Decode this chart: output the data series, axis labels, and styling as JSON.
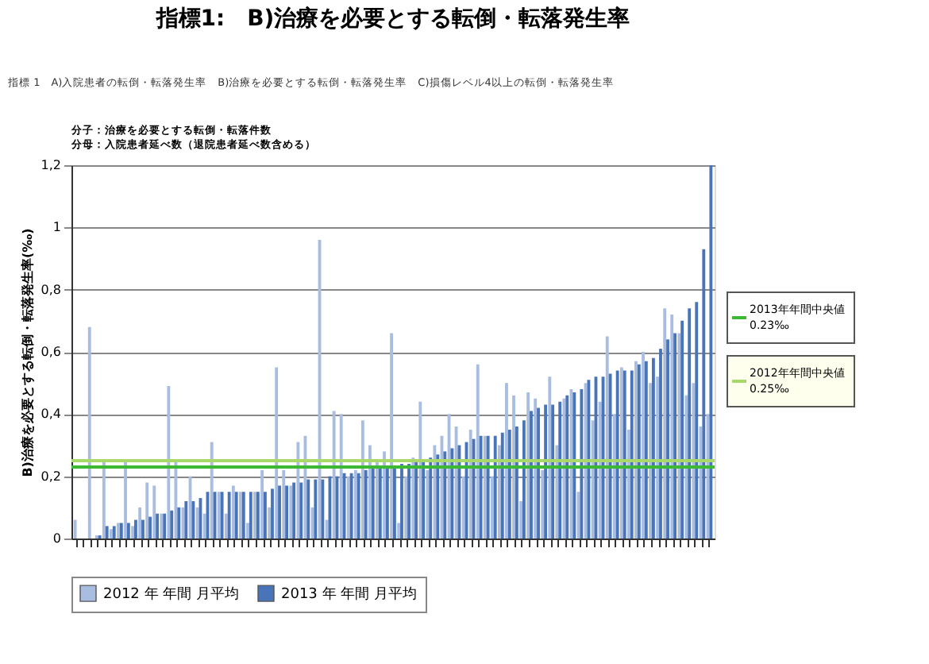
{
  "chart_data": {
    "type": "bar",
    "title": "指標1:　B)治療を必要とする転倒・転落発生率",
    "ylabel": "B)治療を必要とする転倒・転落発生率(‰)",
    "annotations": [
      "指標 1　A)入院患者の転倒・転落発生率　B)治療を必要とする転倒・転落発生率　C)損傷レベル4以上の転倒・転落発生率",
      "分子：治療を必要とする転倒・転落件数",
      "分母：入院患者延べ数（退院患者延べ数含める）"
    ],
    "categories": [
      null,
      null,
      null,
      null,
      null,
      null,
      null,
      null,
      null,
      null,
      null,
      null,
      null,
      null,
      null,
      null,
      null,
      null,
      null,
      null,
      null,
      null,
      null,
      null,
      null,
      null,
      null,
      null,
      null,
      null,
      null,
      null,
      null,
      null,
      null,
      null,
      null,
      null,
      null,
      null,
      null,
      null,
      null,
      null,
      null,
      null,
      null,
      null,
      null,
      null,
      null,
      null,
      null,
      null,
      null,
      null,
      null,
      null,
      null,
      null,
      null,
      null,
      null,
      null,
      null,
      null,
      null,
      null,
      null,
      null,
      null,
      null,
      null,
      null,
      null,
      null,
      null,
      null,
      null,
      null,
      null,
      null,
      null,
      null,
      null,
      null,
      null,
      null,
      null
    ],
    "series": [
      {
        "name": "2012 年 年間 月平均",
        "color": "#a9bde0",
        "values": [
          0.06,
          0,
          0.68,
          0.01,
          0.25,
          0.03,
          0.05,
          0.25,
          0.04,
          0.1,
          0.18,
          0.17,
          0.08,
          0.49,
          0.25,
          0.1,
          0.2,
          0.1,
          0.08,
          0.31,
          0.15,
          0.08,
          0.17,
          0.15,
          0.05,
          0.15,
          0.22,
          0.1,
          0.55,
          0.22,
          0.17,
          0.31,
          0.33,
          0.1,
          0.96,
          0.06,
          0.41,
          0.4,
          0.2,
          0.22,
          0.38,
          0.3,
          0.25,
          0.28,
          0.66,
          0.05,
          0.2,
          0.26,
          0.44,
          0.22,
          0.3,
          0.33,
          0.4,
          0.36,
          0.2,
          0.35,
          0.56,
          0.33,
          0.2,
          0.3,
          0.5,
          0.46,
          0.12,
          0.47,
          0.45,
          0.22,
          0.52,
          0.3,
          0.45,
          0.48,
          0.15,
          0.5,
          0.38,
          0.44,
          0.65,
          0.4,
          0.55,
          0.35,
          0.57,
          0.6,
          0.5,
          0.52,
          0.74,
          0.72,
          0.66,
          0.46,
          0.5,
          0.36,
          0.4
        ]
      },
      {
        "name": "2013 年 年間 月平均",
        "color": "#4a74b8",
        "values": [
          0,
          0,
          0,
          0.01,
          0.04,
          0.04,
          0.05,
          0.05,
          0.06,
          0.06,
          0.07,
          0.08,
          0.08,
          0.09,
          0.1,
          0.12,
          0.12,
          0.13,
          0.15,
          0.15,
          0.15,
          0.15,
          0.15,
          0.15,
          0.15,
          0.15,
          0.15,
          0.16,
          0.17,
          0.17,
          0.18,
          0.18,
          0.19,
          0.19,
          0.19,
          0.2,
          0.2,
          0.21,
          0.21,
          0.21,
          0.22,
          0.23,
          0.23,
          0.23,
          0.23,
          0.24,
          0.24,
          0.25,
          0.25,
          0.26,
          0.27,
          0.28,
          0.29,
          0.3,
          0.31,
          0.32,
          0.33,
          0.33,
          0.33,
          0.34,
          0.35,
          0.36,
          0.38,
          0.41,
          0.42,
          0.43,
          0.43,
          0.44,
          0.46,
          0.47,
          0.48,
          0.51,
          0.52,
          0.52,
          0.53,
          0.54,
          0.54,
          0.54,
          0.56,
          0.57,
          0.58,
          0.61,
          0.64,
          0.66,
          0.7,
          0.74,
          0.76,
          0.93,
          1.2
        ]
      }
    ],
    "ylim": [
      0,
      1.2
    ],
    "yticks": [
      0,
      {
        "value": 0.2,
        "label": "0,2"
      },
      {
        "value": 0.4,
        "label": "0,4"
      },
      {
        "value": 0.6,
        "label": "0,6"
      },
      {
        "value": 0.8,
        "label": "0,8"
      },
      1,
      {
        "value": 1.2,
        "label": "1,2"
      }
    ],
    "grid": "y",
    "legend": "bottom",
    "ref_lines": [
      {
        "axis": "y",
        "value": 0.23,
        "label": "2013年年間中央値 0.23‰",
        "color": "#3cb832"
      },
      {
        "axis": "y",
        "value": 0.25,
        "label": "2012年年間中央値 0.25‰",
        "color": "#a8d86a"
      }
    ]
  }
}
